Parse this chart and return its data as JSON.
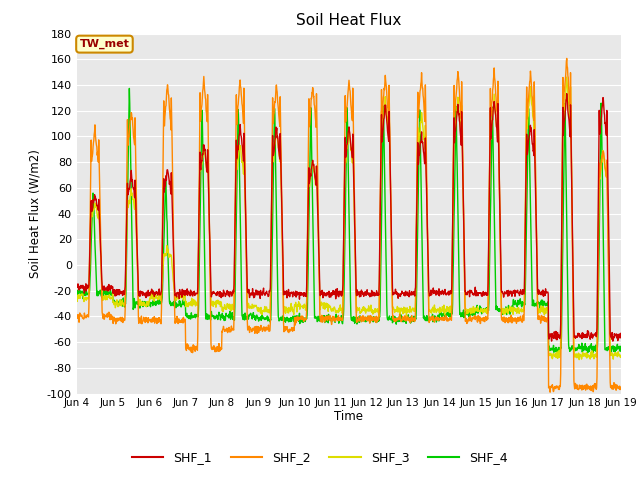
{
  "title": "Soil Heat Flux",
  "ylabel": "Soil Heat Flux (W/m2)",
  "xlabel": "Time",
  "ylim": [
    -100,
    180
  ],
  "yticks": [
    -100,
    -80,
    -60,
    -40,
    -20,
    0,
    20,
    40,
    60,
    80,
    100,
    120,
    140,
    160,
    180
  ],
  "x_tick_labels": [
    "Jun 4",
    "Jun 5",
    "Jun 6",
    "Jun 7",
    "Jun 8",
    "Jun 9",
    "Jun 10",
    "Jun 11",
    "Jun 12",
    "Jun 13",
    "Jun 14",
    "Jun 15",
    "Jun 16",
    "Jun 17",
    "Jun 18",
    "Jun 19"
  ],
  "colors": {
    "SHF_1": "#cc0000",
    "SHF_2": "#ff8800",
    "SHF_3": "#dddd00",
    "SHF_4": "#00cc00"
  },
  "legend_label": "TW_met",
  "fig_bg": "#ffffff",
  "plot_bg": "#e8e8e8",
  "grid_color": "#ffffff",
  "linewidth": 1.0
}
